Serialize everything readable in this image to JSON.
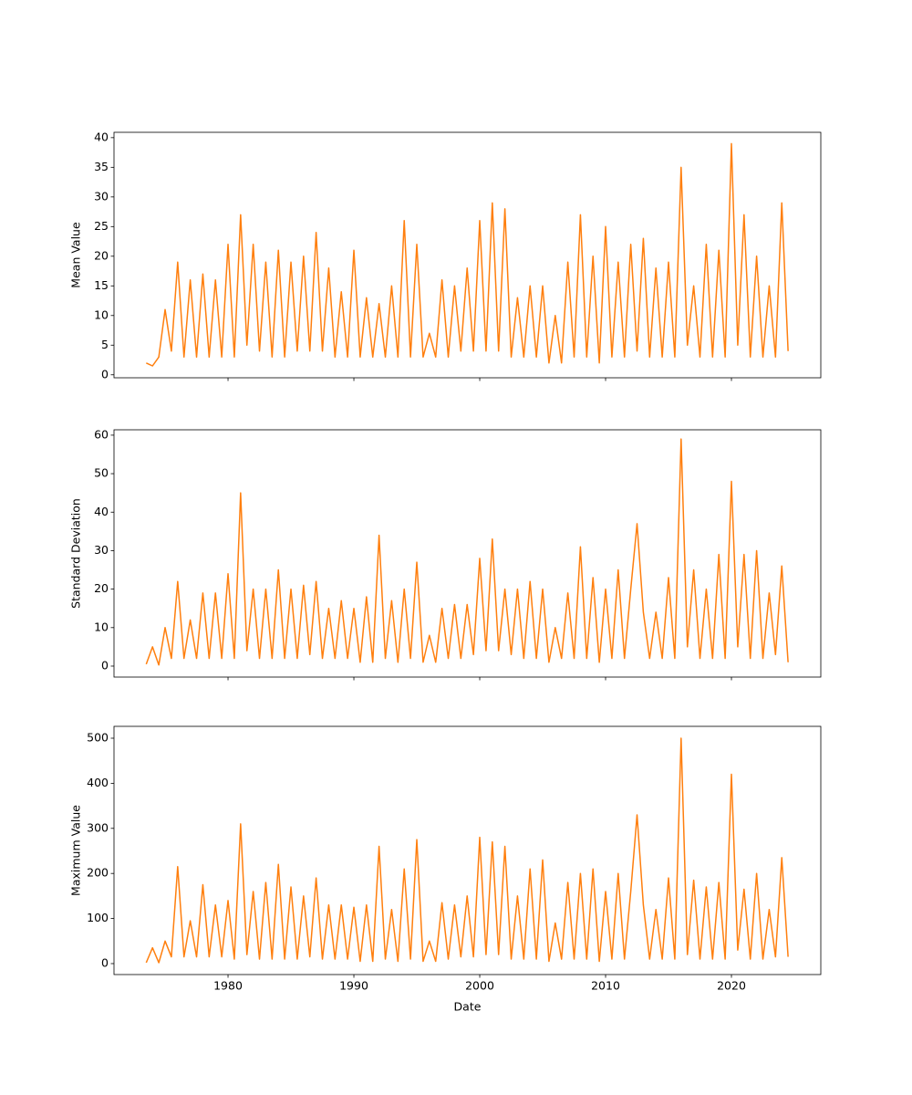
{
  "chart_data": [
    {
      "type": "line",
      "ylabel": "Mean Value",
      "xlim": [
        1970.94,
        2027.1
      ],
      "ylim": [
        -0.5,
        40.9
      ],
      "yticks": [
        0,
        5,
        10,
        15,
        20,
        25,
        30,
        35,
        40
      ],
      "x": [
        1973.5,
        1974,
        1974.5,
        1975,
        1975.5,
        1976,
        1976.5,
        1977,
        1977.5,
        1978,
        1978.5,
        1979,
        1979.5,
        1980,
        1980.5,
        1981,
        1981.5,
        1982,
        1982.5,
        1983,
        1983.5,
        1984,
        1984.5,
        1985,
        1985.5,
        1986,
        1986.5,
        1987,
        1987.5,
        1988,
        1988.5,
        1989,
        1989.5,
        1990,
        1990.5,
        1991,
        1991.5,
        1992,
        1992.5,
        1993,
        1993.5,
        1994,
        1994.5,
        1995,
        1995.5,
        1996,
        1996.5,
        1997,
        1997.5,
        1998,
        1998.5,
        1999,
        1999.5,
        2000,
        2000.5,
        2001,
        2001.5,
        2002,
        2002.5,
        2003,
        2003.5,
        2004,
        2004.5,
        2005,
        2005.5,
        2006,
        2006.5,
        2007,
        2007.5,
        2008,
        2008.5,
        2009,
        2009.5,
        2010,
        2010.5,
        2011,
        2011.5,
        2012,
        2012.5,
        2013,
        2013.5,
        2014,
        2014.5,
        2015,
        2015.5,
        2016,
        2016.5,
        2017,
        2017.5,
        2018,
        2018.5,
        2019,
        2019.5,
        2020,
        2020.5,
        2021,
        2021.5,
        2022,
        2022.5,
        2023,
        2023.5,
        2024,
        2024.5
      ],
      "series": [
        {
          "color": "#ff7f0e",
          "values": [
            2,
            1.5,
            3,
            11,
            4,
            19,
            3,
            16,
            3,
            17,
            3,
            16,
            3,
            22,
            3,
            27,
            5,
            22,
            4,
            19,
            3,
            21,
            3,
            19,
            4,
            20,
            4,
            24,
            4,
            18,
            3,
            14,
            3,
            21,
            3,
            13,
            3,
            12,
            3,
            15,
            3,
            26,
            3,
            22,
            3,
            7,
            3,
            16,
            3,
            15,
            4,
            18,
            4,
            26,
            4,
            29,
            4,
            28,
            3,
            13,
            3,
            15,
            3,
            15,
            2,
            10,
            2,
            19,
            3,
            27,
            3,
            20,
            2,
            25,
            3,
            19,
            3,
            22,
            4,
            23,
            3,
            18,
            3,
            19,
            3,
            35,
            5,
            15,
            3,
            22,
            3,
            21,
            3,
            39,
            5,
            27,
            3,
            20,
            3,
            15,
            3,
            29,
            4
          ]
        }
      ]
    },
    {
      "type": "line",
      "ylabel": "Standard Deviation",
      "xlim": [
        1970.94,
        2027.1
      ],
      "ylim": [
        -2.85,
        61.4
      ],
      "yticks": [
        0,
        10,
        20,
        30,
        40,
        50,
        60
      ],
      "x": [
        1973.5,
        1974,
        1974.5,
        1975,
        1975.5,
        1976,
        1976.5,
        1977,
        1977.5,
        1978,
        1978.5,
        1979,
        1979.5,
        1980,
        1980.5,
        1981,
        1981.5,
        1982,
        1982.5,
        1983,
        1983.5,
        1984,
        1984.5,
        1985,
        1985.5,
        1986,
        1986.5,
        1987,
        1987.5,
        1988,
        1988.5,
        1989,
        1989.5,
        1990,
        1990.5,
        1991,
        1991.5,
        1992,
        1992.5,
        1993,
        1993.5,
        1994,
        1994.5,
        1995,
        1995.5,
        1996,
        1996.5,
        1997,
        1997.5,
        1998,
        1998.5,
        1999,
        1999.5,
        2000,
        2000.5,
        2001,
        2001.5,
        2002,
        2002.5,
        2003,
        2003.5,
        2004,
        2004.5,
        2005,
        2005.5,
        2006,
        2006.5,
        2007,
        2007.5,
        2008,
        2008.5,
        2009,
        2009.5,
        2010,
        2010.5,
        2011,
        2011.5,
        2012,
        2012.5,
        2013,
        2013.5,
        2014,
        2014.5,
        2015,
        2015.5,
        2016,
        2016.5,
        2017,
        2017.5,
        2018,
        2018.5,
        2019,
        2019.5,
        2020,
        2020.5,
        2021,
        2021.5,
        2022,
        2022.5,
        2023,
        2023.5,
        2024,
        2024.5
      ],
      "series": [
        {
          "color": "#ff7f0e",
          "values": [
            0.5,
            5,
            0.3,
            10,
            2,
            22,
            2,
            12,
            2,
            19,
            2,
            19,
            2,
            24,
            2,
            45,
            4,
            20,
            2,
            20,
            2,
            25,
            2,
            20,
            2,
            21,
            3,
            22,
            2,
            15,
            2,
            17,
            2,
            15,
            1,
            18,
            1,
            34,
            2,
            17,
            1,
            20,
            2,
            27,
            1,
            8,
            1,
            15,
            2,
            16,
            2,
            16,
            3,
            28,
            4,
            33,
            4,
            20,
            3,
            20,
            2,
            22,
            2,
            20,
            1,
            10,
            2,
            19,
            2,
            31,
            2,
            23,
            1,
            20,
            2,
            25,
            2,
            20,
            37,
            14,
            2,
            14,
            2,
            23,
            2,
            59,
            5,
            25,
            2,
            20,
            2,
            29,
            2,
            48,
            5,
            29,
            2,
            30,
            2,
            19,
            3,
            26,
            1
          ]
        }
      ]
    },
    {
      "type": "line",
      "ylabel": "Maximum Value",
      "xlabel": "Date",
      "xlim": [
        1970.94,
        2027.1
      ],
      "ylim": [
        -24.3,
        526.3
      ],
      "yticks": [
        0,
        100,
        200,
        300,
        400,
        500
      ],
      "xticks": [
        1980,
        1990,
        2000,
        2010,
        2020
      ],
      "x": [
        1973.5,
        1974,
        1974.5,
        1975,
        1975.5,
        1976,
        1976.5,
        1977,
        1977.5,
        1978,
        1978.5,
        1979,
        1979.5,
        1980,
        1980.5,
        1981,
        1981.5,
        1982,
        1982.5,
        1983,
        1983.5,
        1984,
        1984.5,
        1985,
        1985.5,
        1986,
        1986.5,
        1987,
        1987.5,
        1988,
        1988.5,
        1989,
        1989.5,
        1990,
        1990.5,
        1991,
        1991.5,
        1992,
        1992.5,
        1993,
        1993.5,
        1994,
        1994.5,
        1995,
        1995.5,
        1996,
        1996.5,
        1997,
        1997.5,
        1998,
        1998.5,
        1999,
        1999.5,
        2000,
        2000.5,
        2001,
        2001.5,
        2002,
        2002.5,
        2003,
        2003.5,
        2004,
        2004.5,
        2005,
        2005.5,
        2006,
        2006.5,
        2007,
        2007.5,
        2008,
        2008.5,
        2009,
        2009.5,
        2010,
        2010.5,
        2011,
        2011.5,
        2012,
        2012.5,
        2013,
        2013.5,
        2014,
        2014.5,
        2015,
        2015.5,
        2016,
        2016.5,
        2017,
        2017.5,
        2018,
        2018.5,
        2019,
        2019.5,
        2020,
        2020.5,
        2021,
        2021.5,
        2022,
        2022.5,
        2023,
        2023.5,
        2024,
        2024.5
      ],
      "series": [
        {
          "color": "#ff7f0e",
          "values": [
            2,
            35,
            2,
            50,
            15,
            215,
            15,
            95,
            15,
            175,
            15,
            130,
            15,
            140,
            10,
            310,
            20,
            160,
            10,
            180,
            10,
            220,
            10,
            170,
            10,
            150,
            15,
            190,
            10,
            130,
            10,
            130,
            10,
            125,
            5,
            130,
            5,
            260,
            10,
            120,
            5,
            210,
            10,
            275,
            5,
            50,
            5,
            135,
            10,
            130,
            15,
            150,
            15,
            280,
            20,
            270,
            20,
            260,
            10,
            150,
            10,
            210,
            10,
            230,
            5,
            90,
            10,
            180,
            10,
            200,
            10,
            210,
            5,
            160,
            10,
            200,
            10,
            160,
            330,
            130,
            10,
            120,
            10,
            190,
            10,
            500,
            20,
            185,
            10,
            170,
            10,
            180,
            10,
            420,
            30,
            165,
            10,
            200,
            10,
            120,
            15,
            235,
            15
          ]
        }
      ]
    }
  ]
}
